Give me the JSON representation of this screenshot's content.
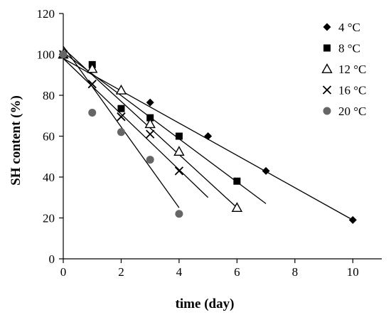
{
  "chart_data": {
    "type": "scatter",
    "title": "",
    "xlabel": "time (day)",
    "ylabel": "SH content (%)",
    "xlim": [
      0,
      11
    ],
    "ylim": [
      0,
      120
    ],
    "xticks": [
      0,
      2,
      4,
      6,
      8,
      10
    ],
    "yticks": [
      0,
      20,
      40,
      60,
      80,
      100,
      120
    ],
    "grid": false,
    "legend_position": "top-right",
    "series": [
      {
        "name": "4 °C",
        "marker": "diamond",
        "color": "#000000",
        "x": [
          0,
          3,
          5,
          7,
          10
        ],
        "y": [
          100,
          76.5,
          60,
          43,
          19
        ],
        "fit": [
          [
            0,
            98
          ],
          [
            10,
            19
          ]
        ]
      },
      {
        "name": "8 °C",
        "marker": "square",
        "color": "#000000",
        "x": [
          0,
          1,
          2,
          3,
          4,
          6
        ],
        "y": [
          100,
          95,
          73.5,
          69,
          60,
          38
        ],
        "fit": [
          [
            0,
            101
          ],
          [
            7,
            27
          ]
        ]
      },
      {
        "name": "12 °C",
        "marker": "triangle-open",
        "color": "#000000",
        "x": [
          0,
          1,
          2,
          3,
          4,
          6
        ],
        "y": [
          100,
          93,
          82.5,
          66,
          52.5,
          25
        ],
        "fit": [
          [
            0,
            103
          ],
          [
            6,
            25
          ]
        ]
      },
      {
        "name": "16 °C",
        "marker": "x",
        "color": "#000000",
        "x": [
          0,
          1,
          2,
          3,
          4
        ],
        "y": [
          100,
          85.5,
          69.5,
          61,
          43
        ],
        "fit": [
          [
            0,
            98
          ],
          [
            5,
            30
          ]
        ]
      },
      {
        "name": "20 °C",
        "marker": "circle",
        "color": "#666666",
        "x": [
          0,
          1,
          2,
          3,
          4
        ],
        "y": [
          100,
          71.5,
          62,
          48.5,
          22
        ],
        "fit": [
          [
            0,
            104
          ],
          [
            4,
            25
          ]
        ]
      }
    ]
  }
}
